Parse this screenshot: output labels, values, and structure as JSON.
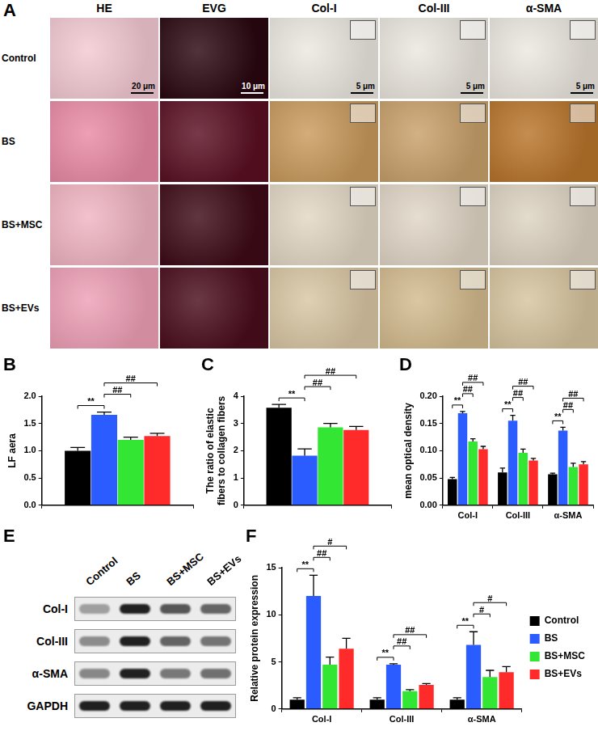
{
  "images": {
    "title": "A",
    "columns": [
      "HE",
      "EVG",
      "Col-I",
      "Col-III",
      "α-SMA"
    ],
    "rows": [
      "Control",
      "BS",
      "BS+MSC",
      "BS+EVs"
    ],
    "scale_bars": [
      "20 μm",
      "10 μm",
      "5 μm",
      "5 μm",
      "5 μm"
    ]
  },
  "blot": {
    "title": "E",
    "lanes": [
      "Control",
      "BS",
      "BS+MSC",
      "BS+EVs"
    ],
    "bands": [
      "Col-I",
      "Col-III",
      "α-SMA",
      "GAPDH"
    ]
  },
  "chart_data": [
    {
      "type": "bar",
      "title": "B",
      "ylabel": "LF aera",
      "categories": [
        null
      ],
      "series": [
        {
          "name": "Control",
          "color": "#000000",
          "values": [
            1.0
          ],
          "errors": [
            0.06
          ]
        },
        {
          "name": "BS",
          "color": "#2a5cff",
          "values": [
            1.66
          ],
          "errors": [
            0.05
          ]
        },
        {
          "name": "BS+MSC",
          "color": "#33e633",
          "values": [
            1.2
          ],
          "errors": [
            0.05
          ]
        },
        {
          "name": "BS+EVs",
          "color": "#ff2a2a",
          "values": [
            1.27
          ],
          "errors": [
            0.05
          ]
        }
      ],
      "ylim": [
        0,
        2
      ],
      "yticks": [
        {
          "value": 0,
          "label": "0.0"
        },
        0.5,
        {
          "value": 1,
          "label": "1.0"
        },
        1.5,
        {
          "value": 2,
          "label": "2.0"
        }
      ],
      "grid": false,
      "annotations": [
        {
          "text": "**",
          "pair": [
            "Control",
            "BS"
          ]
        },
        {
          "text": "##",
          "pair": [
            "BS",
            "BS+MSC"
          ]
        },
        {
          "text": "##",
          "pair": [
            "BS",
            "BS+EVs"
          ]
        }
      ]
    },
    {
      "type": "bar",
      "title": "C",
      "ylabel": "The ratio of elastic fibers to collagen fibers",
      "categories": [
        null
      ],
      "series": [
        {
          "name": "Control",
          "color": "#000000",
          "values": [
            3.58
          ],
          "errors": [
            0.12
          ]
        },
        {
          "name": "BS",
          "color": "#2a5cff",
          "values": [
            1.82
          ],
          "errors": [
            0.25
          ]
        },
        {
          "name": "BS+MSC",
          "color": "#33e633",
          "values": [
            2.86
          ],
          "errors": [
            0.14
          ]
        },
        {
          "name": "BS+EVs",
          "color": "#ff2a2a",
          "values": [
            2.76
          ],
          "errors": [
            0.13
          ]
        }
      ],
      "ylim": [
        0,
        4
      ],
      "yticks": [
        0,
        1,
        2,
        3,
        4
      ],
      "grid": false,
      "annotations": [
        {
          "text": "**",
          "pair": [
            "Control",
            "BS"
          ]
        },
        {
          "text": "##",
          "pair": [
            "BS",
            "BS+MSC"
          ]
        },
        {
          "text": "##",
          "pair": [
            "BS",
            "BS+EVs"
          ]
        }
      ]
    },
    {
      "type": "bar",
      "title": "D",
      "ylabel": "mean optical density",
      "categories": [
        "Col-I",
        "Col-III",
        "α-SMA"
      ],
      "series": [
        {
          "name": "Control",
          "color": "#000000",
          "values": [
            0.048,
            0.06,
            0.057
          ],
          "errors": [
            0.003,
            0.008,
            0.002
          ]
        },
        {
          "name": "BS",
          "color": "#2a5cff",
          "values": [
            0.169,
            0.155,
            0.137
          ],
          "errors": [
            0.003,
            0.01,
            0.006
          ]
        },
        {
          "name": "BS+MSC",
          "color": "#33e633",
          "values": [
            0.117,
            0.096,
            0.07
          ],
          "errors": [
            0.005,
            0.007,
            0.007
          ]
        },
        {
          "name": "BS+EVs",
          "color": "#ff2a2a",
          "values": [
            0.103,
            0.082,
            0.075
          ],
          "errors": [
            0.005,
            0.004,
            0.005
          ]
        }
      ],
      "ylim": [
        0,
        0.2
      ],
      "yticks": [
        {
          "value": 0,
          "label": "0.00"
        },
        0.05,
        {
          "value": 0.1,
          "label": "0.10"
        },
        0.15,
        {
          "value": 0.2,
          "label": "0.20"
        }
      ],
      "grid": false,
      "annotations": [
        {
          "text": "**",
          "category": "Col-I",
          "pair": [
            "Control",
            "BS"
          ]
        },
        {
          "text": "##",
          "category": "Col-I",
          "pair": [
            "BS",
            "BS+MSC"
          ]
        },
        {
          "text": "##",
          "category": "Col-I",
          "pair": [
            "BS",
            "BS+EVs"
          ]
        },
        {
          "text": "**",
          "category": "Col-III",
          "pair": [
            "Control",
            "BS"
          ]
        },
        {
          "text": "##",
          "category": "Col-III",
          "pair": [
            "BS",
            "BS+MSC"
          ]
        },
        {
          "text": "##",
          "category": "Col-III",
          "pair": [
            "BS",
            "BS+EVs"
          ]
        },
        {
          "text": "**",
          "category": "α-SMA",
          "pair": [
            "Control",
            "BS"
          ]
        },
        {
          "text": "##",
          "category": "α-SMA",
          "pair": [
            "BS",
            "BS+MSC"
          ]
        },
        {
          "text": "##",
          "category": "α-SMA",
          "pair": [
            "BS",
            "BS+EVs"
          ]
        }
      ]
    },
    {
      "type": "bar",
      "title": "F",
      "ylabel": "Relative protein expression",
      "categories": [
        "Col-I",
        "Col-III",
        "α-SMA"
      ],
      "series": [
        {
          "name": "Control",
          "color": "#000000",
          "values": [
            1.0,
            1.0,
            1.0
          ],
          "errors": [
            0.2,
            0.2,
            0.2
          ]
        },
        {
          "name": "BS",
          "color": "#2a5cff",
          "values": [
            12.0,
            4.7,
            6.8
          ],
          "errors": [
            2.2,
            0.1,
            1.4
          ]
        },
        {
          "name": "BS+MSC",
          "color": "#33e633",
          "values": [
            4.7,
            1.9,
            3.4
          ],
          "errors": [
            0.8,
            0.15,
            0.7
          ]
        },
        {
          "name": "BS+EVs",
          "color": "#ff2a2a",
          "values": [
            6.4,
            2.55,
            3.9
          ],
          "errors": [
            1.1,
            0.15,
            0.6
          ]
        }
      ],
      "ylim": [
        0,
        15
      ],
      "yticks": [
        0,
        5,
        10,
        15
      ],
      "grid": false,
      "legend": "right",
      "annotations": [
        {
          "text": "**",
          "category": "Col-I",
          "pair": [
            "Control",
            "BS"
          ]
        },
        {
          "text": "##",
          "category": "Col-I",
          "pair": [
            "BS",
            "BS+MSC"
          ]
        },
        {
          "text": "#",
          "category": "Col-I",
          "pair": [
            "BS",
            "BS+EVs"
          ]
        },
        {
          "text": "**",
          "category": "Col-III",
          "pair": [
            "Control",
            "BS"
          ]
        },
        {
          "text": "##",
          "category": "Col-III",
          "pair": [
            "BS",
            "BS+MSC"
          ]
        },
        {
          "text": "##",
          "category": "Col-III",
          "pair": [
            "BS",
            "BS+EVs"
          ]
        },
        {
          "text": "**",
          "category": "α-SMA",
          "pair": [
            "Control",
            "BS"
          ]
        },
        {
          "text": "#",
          "category": "α-SMA",
          "pair": [
            "BS",
            "BS+MSC"
          ]
        },
        {
          "text": "#",
          "category": "α-SMA",
          "pair": [
            "BS",
            "BS+EVs"
          ]
        }
      ]
    }
  ]
}
